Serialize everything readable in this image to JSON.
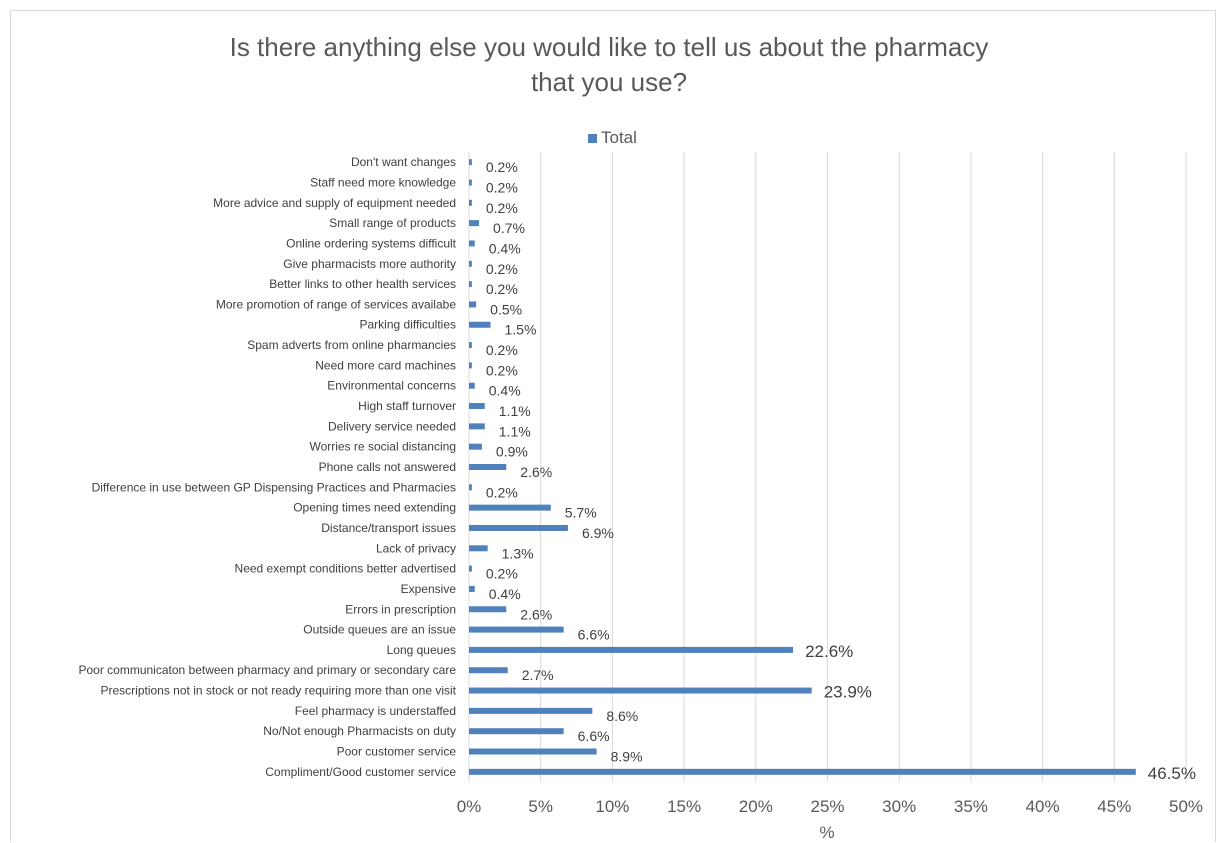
{
  "chart_data": {
    "type": "bar",
    "orientation": "horizontal",
    "title": "Is there anything else you would like to tell us about the pharmacy\nthat you use?",
    "xlabel": "%",
    "ylabel": "",
    "xlim": [
      0,
      50
    ],
    "x_ticks": [
      "0%",
      "5%",
      "10%",
      "15%",
      "20%",
      "25%",
      "30%",
      "35%",
      "40%",
      "45%",
      "50%"
    ],
    "grid": "vertical",
    "legend_position": "top",
    "color": "#4f81bd",
    "series": [
      {
        "name": "Total",
        "categories": [
          "Don't want changes",
          "Staff need more knowledge",
          "More advice and supply of equipment needed",
          "Small range of products",
          "Online ordering systems difficult",
          "Give pharmacists more authority",
          "Better links to other health services",
          "More promotion of range of services availabe",
          "Parking difficulties",
          "Spam adverts from online pharmancies",
          "Need more card machines",
          "Environmental concerns",
          "High staff turnover",
          "Delivery service needed",
          "Worries re social distancing",
          "Phone calls not answered",
          "Difference in use between GP Dispensing Practices and Pharmacies",
          "Opening times need extending",
          "Distance/transport issues",
          "Lack of privacy",
          "Need exempt conditions better advertised",
          "Expensive",
          "Errors in prescription",
          "Outside queues are an issue",
          "Long queues",
          "Poor communicaton between pharmacy and primary or secondary care",
          "Prescriptions not in stock or not ready requiring more than one visit",
          "Feel pharmacy is understaffed",
          "No/Not enough Pharmacists on duty",
          "Poor customer service",
          "Compliment/Good customer service"
        ],
        "values": [
          0.2,
          0.2,
          0.2,
          0.7,
          0.4,
          0.2,
          0.2,
          0.5,
          1.5,
          0.2,
          0.2,
          0.4,
          1.1,
          1.1,
          0.9,
          2.6,
          0.2,
          5.7,
          6.9,
          1.3,
          0.2,
          0.4,
          2.6,
          6.6,
          22.6,
          2.7,
          23.9,
          8.6,
          6.6,
          8.9,
          46.5
        ],
        "labels": [
          "0.2%",
          "0.2%",
          "0.2%",
          "0.7%",
          "0.4%",
          "0.2%",
          "0.2%",
          "0.5%",
          "1.5%",
          "0.2%",
          "0.2%",
          "0.4%",
          "1.1%",
          "1.1%",
          "0.9%",
          "2.6%",
          "0.2%",
          "5.7%",
          "6.9%",
          "1.3%",
          "0.2%",
          "0.4%",
          "2.6%",
          "6.6%",
          "22.6%",
          "2.7%",
          "23.9%",
          "8.6%",
          "6.6%",
          "8.9%",
          "46.5%"
        ],
        "large_label_threshold": 20
      }
    ]
  }
}
